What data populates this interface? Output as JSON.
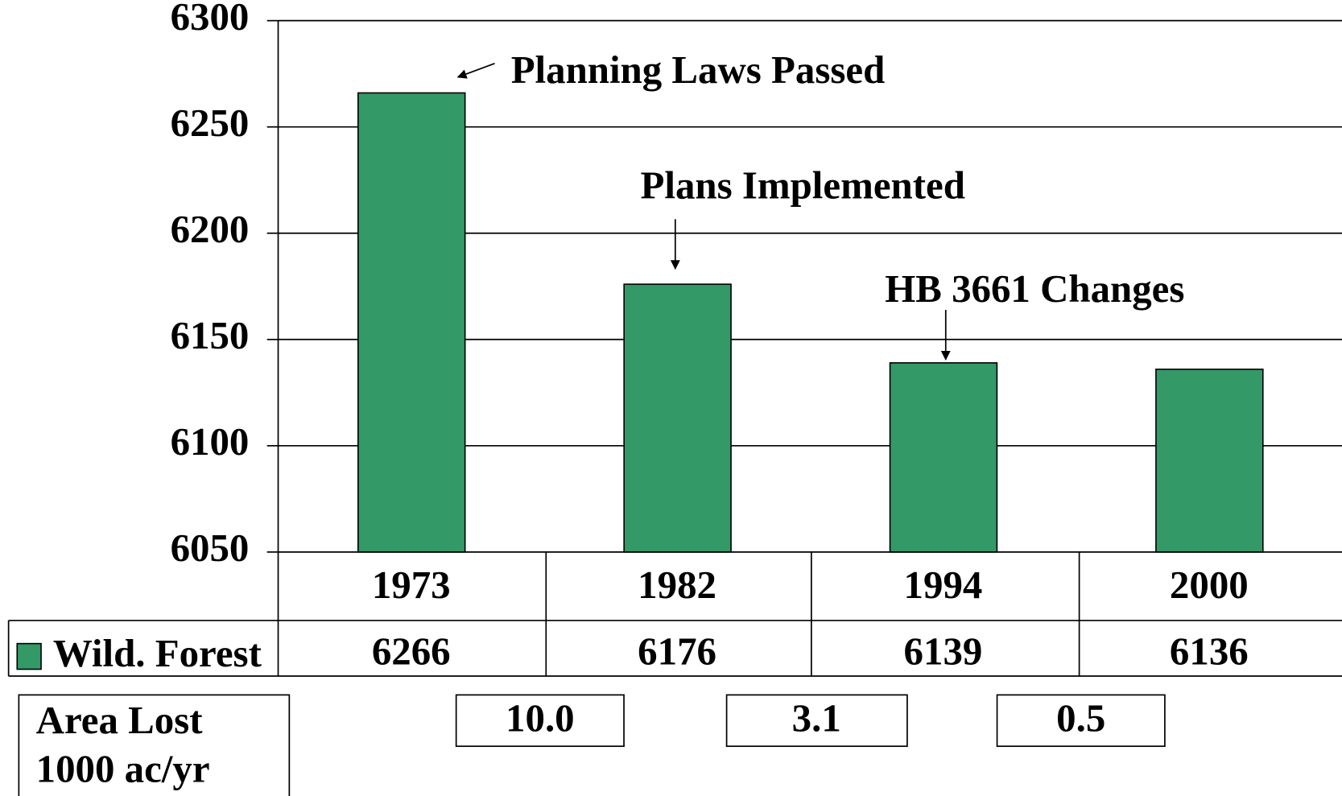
{
  "chart_data": {
    "type": "bar",
    "categories": [
      "1973",
      "1982",
      "1994",
      "2000"
    ],
    "series": [
      {
        "name": "Wild. Forest",
        "color": "#339966",
        "values": [
          6266,
          6176,
          6139,
          6136
        ]
      }
    ],
    "ylim": [
      6050,
      6300
    ],
    "yticks": [
      6050,
      6100,
      6150,
      6200,
      6250,
      6300
    ],
    "grid": true,
    "annotations": [
      "Planning Laws Passed",
      "Plans Implemented",
      "HB 3661 Changes"
    ],
    "area_lost": {
      "label": [
        "Area Lost",
        "1000 ac/yr"
      ],
      "values": [
        "10.0",
        "3.1",
        "0.5"
      ]
    }
  }
}
